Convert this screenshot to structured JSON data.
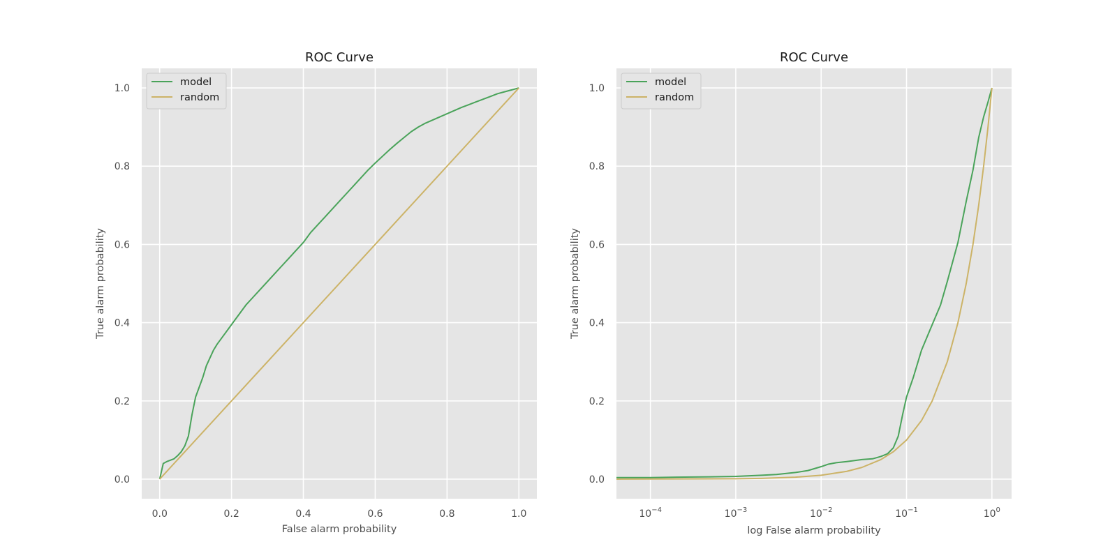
{
  "chart_data": [
    {
      "type": "line",
      "title": "ROC Curve",
      "xlabel": "False alarm probability",
      "ylabel": "True alarm probability",
      "xscale": "linear",
      "xlim": [
        -0.05,
        1.05
      ],
      "ylim": [
        -0.05,
        1.05
      ],
      "xticks": [
        0.0,
        0.2,
        0.4,
        0.6,
        0.8,
        1.0
      ],
      "xtick_labels": [
        "0.0",
        "0.2",
        "0.4",
        "0.6",
        "0.8",
        "1.0"
      ],
      "yticks": [
        0.0,
        0.2,
        0.4,
        0.6,
        0.8,
        1.0
      ],
      "ytick_labels": [
        "0.0",
        "0.2",
        "0.4",
        "0.6",
        "0.8",
        "1.0"
      ],
      "grid": true,
      "legend": "upper left",
      "series": [
        {
          "name": "model",
          "color": "#4aa35a",
          "x": [
            0.0,
            0.01,
            0.02,
            0.04,
            0.05,
            0.06,
            0.07,
            0.08,
            0.09,
            0.1,
            0.11,
            0.12,
            0.13,
            0.14,
            0.15,
            0.16,
            0.18,
            0.2,
            0.22,
            0.24,
            0.26,
            0.28,
            0.3,
            0.32,
            0.34,
            0.36,
            0.38,
            0.4,
            0.42,
            0.44,
            0.46,
            0.48,
            0.5,
            0.52,
            0.54,
            0.56,
            0.58,
            0.6,
            0.62,
            0.64,
            0.66,
            0.68,
            0.7,
            0.72,
            0.74,
            0.76,
            0.78,
            0.8,
            0.82,
            0.84,
            0.86,
            0.88,
            0.9,
            0.92,
            0.94,
            0.96,
            0.98,
            1.0
          ],
          "y": [
            0.0,
            0.04,
            0.045,
            0.052,
            0.06,
            0.07,
            0.085,
            0.11,
            0.165,
            0.21,
            0.235,
            0.26,
            0.29,
            0.31,
            0.33,
            0.345,
            0.37,
            0.395,
            0.42,
            0.445,
            0.465,
            0.485,
            0.505,
            0.525,
            0.545,
            0.565,
            0.585,
            0.605,
            0.63,
            0.65,
            0.67,
            0.69,
            0.71,
            0.73,
            0.75,
            0.77,
            0.79,
            0.808,
            0.825,
            0.842,
            0.858,
            0.873,
            0.888,
            0.9,
            0.91,
            0.918,
            0.926,
            0.934,
            0.942,
            0.95,
            0.957,
            0.964,
            0.971,
            0.978,
            0.985,
            0.99,
            0.995,
            1.0
          ]
        },
        {
          "name": "random",
          "color": "#ccb367",
          "x": [
            0.0,
            1.0
          ],
          "y": [
            0.0,
            1.0
          ]
        }
      ]
    },
    {
      "type": "line",
      "title": "ROC Curve",
      "xlabel": "log False alarm probability",
      "ylabel": "True alarm probability",
      "xscale": "log",
      "xlim": [
        4e-05,
        1.7
      ],
      "ylim": [
        -0.05,
        1.05
      ],
      "xticks": [
        0.0001,
        0.001,
        0.01,
        0.1,
        1
      ],
      "xtick_labels": [
        {
          "base": "10",
          "exp": "−4"
        },
        {
          "base": "10",
          "exp": "−3"
        },
        {
          "base": "10",
          "exp": "−2"
        },
        {
          "base": "10",
          "exp": "−1"
        },
        {
          "base": "10",
          "exp": "0"
        }
      ],
      "yticks": [
        0.0,
        0.2,
        0.4,
        0.6,
        0.8,
        1.0
      ],
      "ytick_labels": [
        "0.0",
        "0.2",
        "0.4",
        "0.6",
        "0.8",
        "1.0"
      ],
      "grid": true,
      "legend": "upper left",
      "series": [
        {
          "name": "model",
          "color": "#4aa35a",
          "x": [
            4e-05,
            0.0001,
            0.0002,
            0.0005,
            0.001,
            0.002,
            0.003,
            0.005,
            0.007,
            0.01,
            0.012,
            0.015,
            0.02,
            0.03,
            0.04,
            0.05,
            0.06,
            0.07,
            0.08,
            0.09,
            0.1,
            0.12,
            0.15,
            0.2,
            0.25,
            0.3,
            0.4,
            0.5,
            0.6,
            0.7,
            0.8,
            0.9,
            1.0
          ],
          "y": [
            0.004,
            0.004,
            0.005,
            0.006,
            0.007,
            0.01,
            0.012,
            0.017,
            0.022,
            0.032,
            0.038,
            0.042,
            0.045,
            0.05,
            0.052,
            0.058,
            0.065,
            0.08,
            0.11,
            0.165,
            0.21,
            0.26,
            0.33,
            0.395,
            0.445,
            0.505,
            0.605,
            0.71,
            0.79,
            0.873,
            0.926,
            0.964,
            1.0
          ]
        },
        {
          "name": "random",
          "color": "#ccb367",
          "x": [
            4e-05,
            0.001,
            0.002,
            0.005,
            0.01,
            0.02,
            0.03,
            0.05,
            0.07,
            0.1,
            0.15,
            0.2,
            0.3,
            0.4,
            0.5,
            0.6,
            0.7,
            0.8,
            0.9,
            1.0
          ],
          "y": [
            0.0,
            0.001,
            0.002,
            0.005,
            0.01,
            0.02,
            0.03,
            0.05,
            0.07,
            0.1,
            0.15,
            0.2,
            0.3,
            0.4,
            0.5,
            0.6,
            0.7,
            0.8,
            0.9,
            1.0
          ]
        }
      ]
    }
  ]
}
